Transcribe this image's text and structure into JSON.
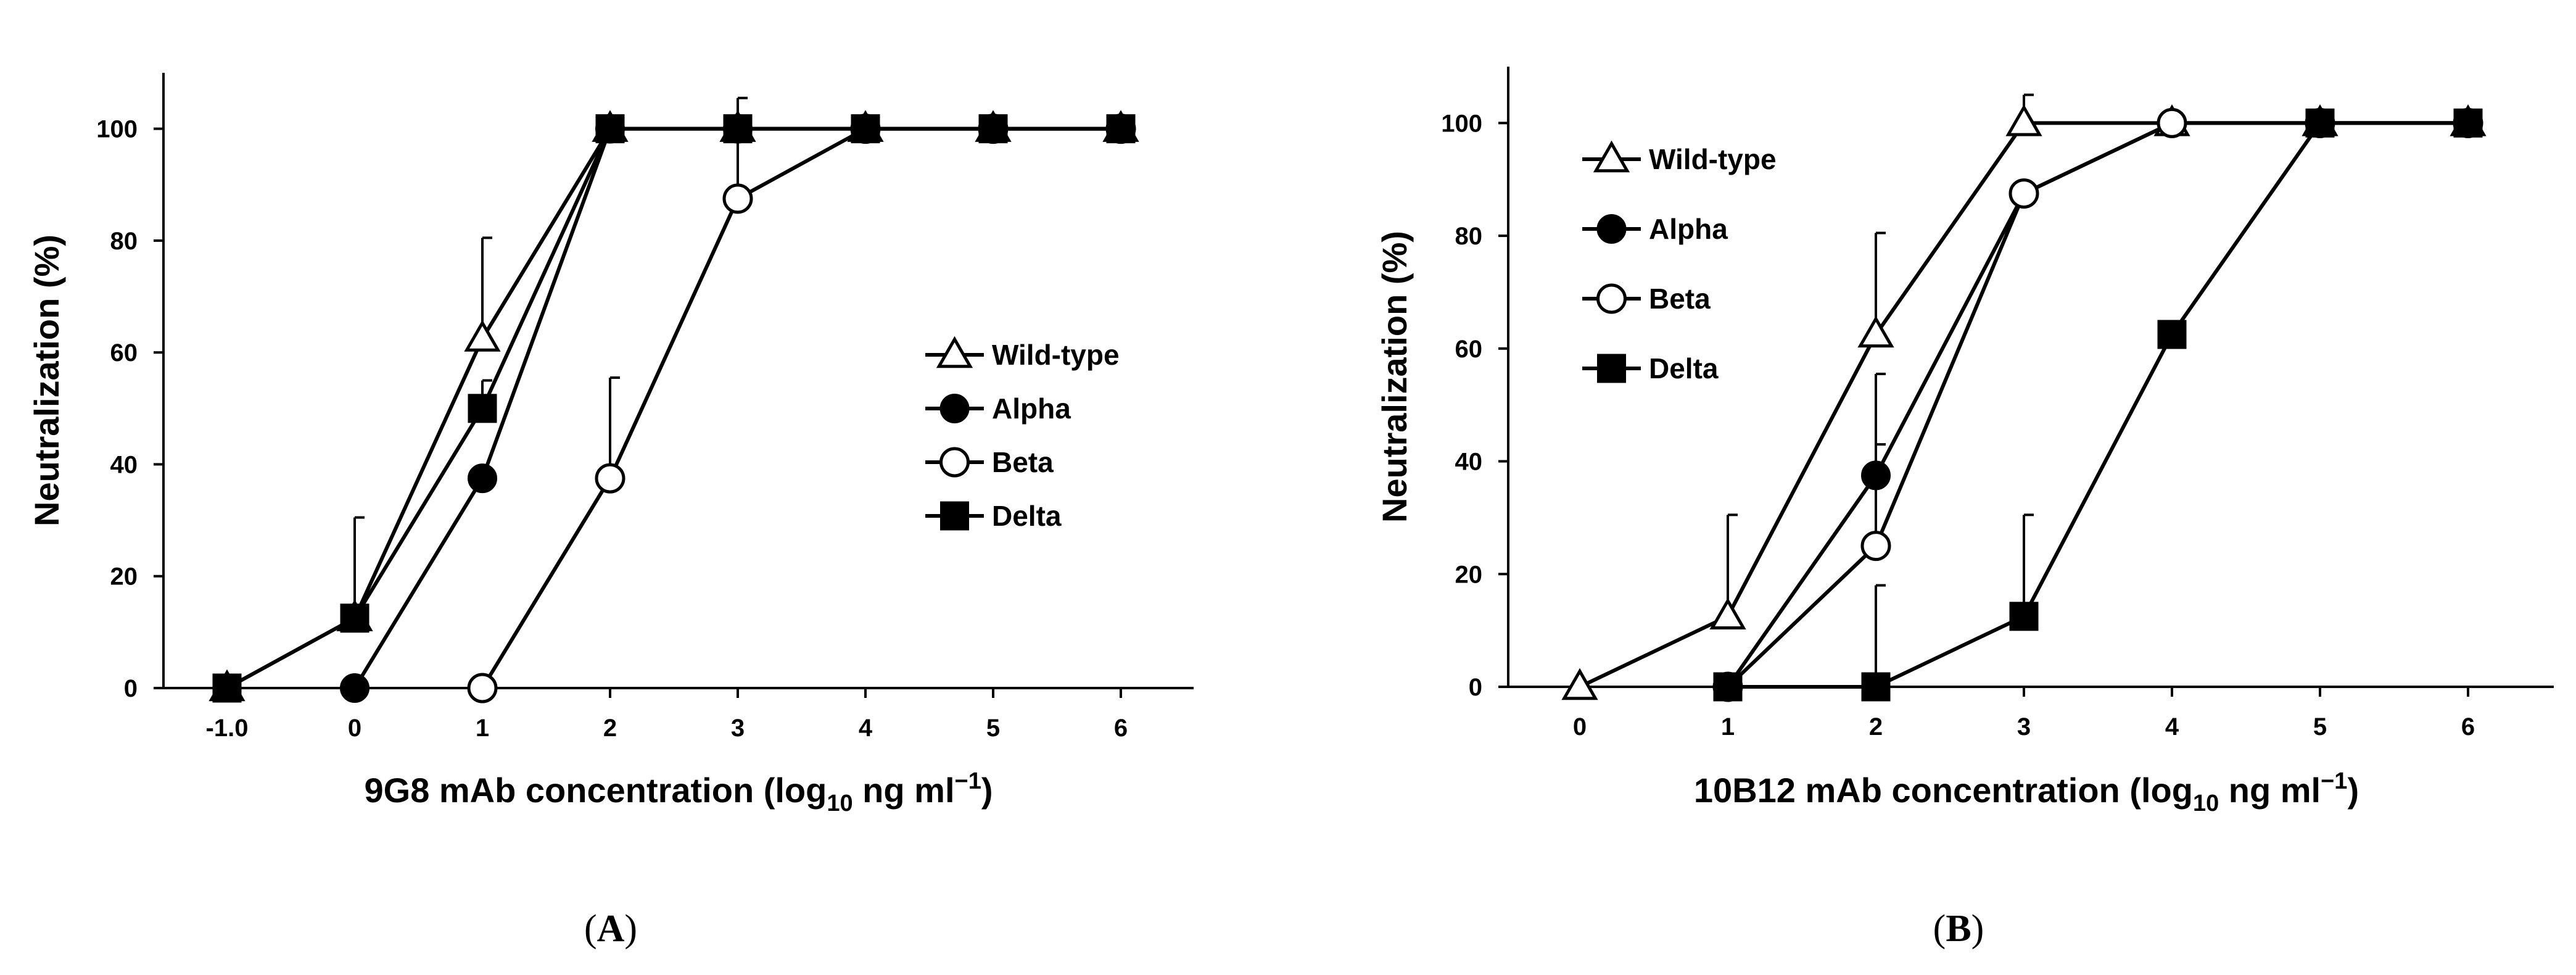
{
  "chart_data": [
    {
      "type": "line",
      "panel": "A",
      "x_tick_labels": [
        "-1.0",
        "0",
        "1",
        "2",
        "3",
        "4",
        "5",
        "6"
      ],
      "x_ticks": [
        -1,
        0,
        1,
        2,
        3,
        4,
        5,
        6
      ],
      "xlim": [
        -1.5,
        6.5
      ],
      "ylim": [
        0,
        110
      ],
      "y_ticks": [
        0,
        20,
        40,
        60,
        80,
        100
      ],
      "ylabel": "Neutralization (%)",
      "xlabel": {
        "prefix": "9G8 mAb concentration (log",
        "sub": "10",
        "mid": " ng ml",
        "sup": "−1",
        "suffix": ")"
      },
      "legend_position": "center-right",
      "series": [
        {
          "name": "Wild-type",
          "marker": "triangle-open",
          "x": [
            -1,
            0,
            1,
            2,
            3,
            4,
            5,
            6
          ],
          "y": [
            0,
            12.5,
            62.5,
            100,
            100,
            100,
            100,
            100
          ],
          "err": [
            0,
            0,
            18,
            0,
            0,
            0,
            0,
            0
          ]
        },
        {
          "name": "Alpha",
          "marker": "circle-filled",
          "x": [
            0,
            1,
            2,
            3,
            4,
            5,
            6
          ],
          "y": [
            0,
            37.5,
            100,
            100,
            100,
            100,
            100
          ],
          "err": [
            0,
            0,
            0,
            0,
            0,
            0,
            0
          ]
        },
        {
          "name": "Beta",
          "marker": "circle-open",
          "x": [
            1,
            2,
            3,
            4,
            5,
            6
          ],
          "y": [
            0,
            37.5,
            87.5,
            100,
            100,
            100
          ],
          "err": [
            0,
            18,
            18,
            0,
            0,
            0
          ]
        },
        {
          "name": "Delta",
          "marker": "square-filled",
          "x": [
            -1,
            0,
            1,
            2,
            3,
            4,
            5,
            6
          ],
          "y": [
            0,
            12.5,
            50,
            100,
            100,
            100,
            100,
            100
          ],
          "err": [
            0,
            18,
            5,
            0,
            0,
            0,
            0,
            0
          ]
        }
      ]
    },
    {
      "type": "line",
      "panel": "B",
      "x_tick_labels": [
        "0",
        "1",
        "2",
        "3",
        "4",
        "5",
        "6"
      ],
      "x_ticks": [
        0,
        1,
        2,
        3,
        4,
        5,
        6
      ],
      "xlim": [
        -0.5,
        6.5
      ],
      "ylim": [
        0,
        110
      ],
      "y_ticks": [
        0,
        20,
        40,
        60,
        80,
        100
      ],
      "ylabel": "Neutralization (%)",
      "xlabel": {
        "prefix": "10B12 mAb concentration (log",
        "sub": "10",
        "mid": " ng ml",
        "sup": "−1",
        "suffix": ")"
      },
      "legend_position": "top-left",
      "series": [
        {
          "name": "Wild-type",
          "marker": "triangle-open",
          "x": [
            0,
            1,
            2,
            3,
            4,
            5,
            6
          ],
          "y": [
            0,
            12.5,
            62.5,
            100,
            100,
            100,
            100
          ],
          "err": [
            0,
            18,
            18,
            5,
            0,
            0,
            0
          ]
        },
        {
          "name": "Alpha",
          "marker": "circle-filled",
          "x": [
            1,
            2,
            3,
            4,
            5,
            6
          ],
          "y": [
            0,
            37.5,
            87.5,
            100,
            100,
            100
          ],
          "err": [
            0,
            18,
            0,
            0,
            0,
            0
          ]
        },
        {
          "name": "Beta",
          "marker": "circle-open",
          "x": [
            1,
            2,
            3,
            4,
            5,
            6
          ],
          "y": [
            0,
            25,
            87.5,
            100,
            100,
            100
          ],
          "err": [
            0,
            18,
            0,
            0,
            0,
            0
          ]
        },
        {
          "name": "Delta",
          "marker": "square-filled",
          "x": [
            1,
            2,
            3,
            4,
            5,
            6
          ],
          "y": [
            0,
            0,
            12.5,
            62.5,
            100,
            100
          ],
          "err": [
            0,
            18,
            18,
            0,
            0,
            0
          ]
        }
      ]
    }
  ]
}
